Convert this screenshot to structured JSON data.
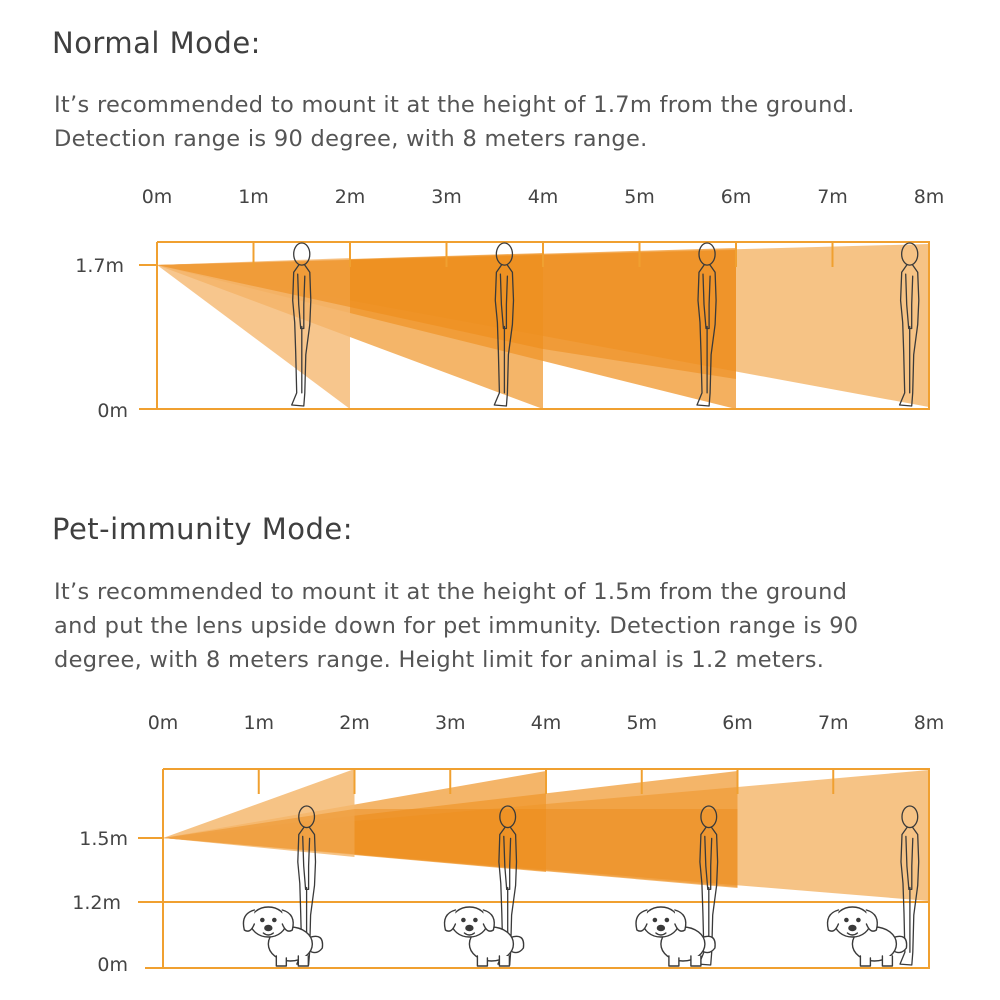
{
  "normal": {
    "title": "Normal Mode:",
    "description": [
      "It’s recommended to mount it at the height of 1.7m from the ground.",
      "Detection range is 90 degree, with 8 meters range."
    ],
    "tick_labels": [
      "0m",
      "1m",
      "2m",
      "3m",
      "4m",
      "5m",
      "6m",
      "7m",
      "8m"
    ],
    "height_labels": [
      "1.7m",
      "0m"
    ],
    "mount_height_m": 1.7,
    "person_distances_m": [
      1.5,
      3.6,
      5.7,
      7.8
    ]
  },
  "pet": {
    "title": "Pet-immunity Mode:",
    "description": [
      "It’s recommended to mount it at the height of 1.5m from the ground",
      "and put the lens upside down for pet immunity. Detection range is 90",
      "degree, with 8 meters range. Height limit for animal is 1.2 meters."
    ],
    "tick_labels": [
      "0m",
      "1m",
      "2m",
      "3m",
      "4m",
      "5m",
      "6m",
      "7m",
      "8m"
    ],
    "height_labels": [
      "1.5m",
      "1.2m",
      "0m"
    ],
    "mount_height_m": 1.5,
    "animal_height_limit_m": 1.2,
    "person_distances_m": [
      1.5,
      3.6,
      5.7,
      7.8
    ],
    "dog_distances_m": [
      1.1,
      3.2,
      5.2,
      7.2
    ]
  },
  "colors": {
    "accent": "#f0a030",
    "beam_light": "#f5b870",
    "beam_mid": "#f0962a",
    "beam_dark": "#ec8a18"
  }
}
